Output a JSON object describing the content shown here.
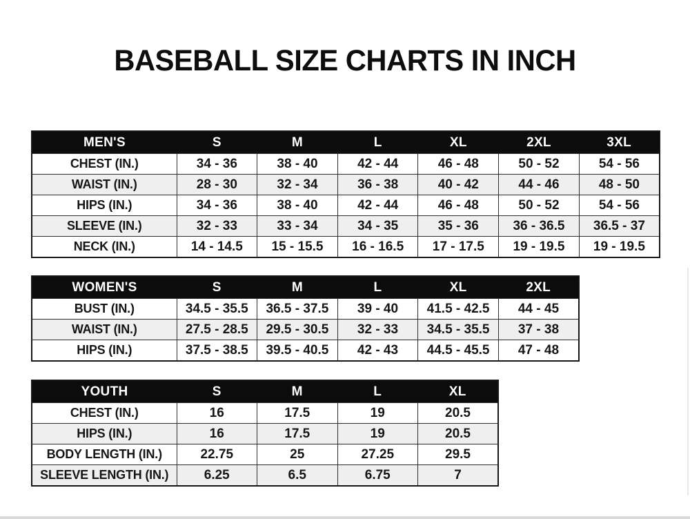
{
  "title": "BASEBALL SIZE CHARTS IN INCH",
  "colors": {
    "header_bg": "#0c0c0c",
    "header_text": "#ffffff",
    "row_alt_bg": "#efefef",
    "border": "#2d2d2d",
    "text": "#151515"
  },
  "tables": [
    {
      "id": "mens",
      "header": [
        "MEN'S",
        "S",
        "M",
        "L",
        "XL",
        "2XL",
        "3XL"
      ],
      "rows": [
        [
          "CHEST (IN.)",
          "34 - 36",
          "38 - 40",
          "42 - 44",
          "46 - 48",
          "50 - 52",
          "54 - 56"
        ],
        [
          "WAIST (IN.)",
          "28 - 30",
          "32 - 34",
          "36 - 38",
          "40 - 42",
          "44 - 46",
          "48 - 50"
        ],
        [
          "HIPS (IN.)",
          "34 - 36",
          "38 - 40",
          "42 - 44",
          "46 - 48",
          "50 - 52",
          "54 - 56"
        ],
        [
          "SLEEVE (IN.)",
          "32 - 33",
          "33 - 34",
          "34 - 35",
          "35 - 36",
          "36 - 36.5",
          "36.5 - 37"
        ],
        [
          "NECK (IN.)",
          "14 - 14.5",
          "15 - 15.5",
          "16 - 16.5",
          "17 - 17.5",
          "19 - 19.5",
          "19 - 19.5"
        ]
      ]
    },
    {
      "id": "womens",
      "header": [
        "WOMEN'S",
        "S",
        "M",
        "L",
        "XL",
        "2XL"
      ],
      "rows": [
        [
          "BUST (IN.)",
          "34.5 - 35.5",
          "36.5 - 37.5",
          "39 - 40",
          "41.5 - 42.5",
          "44 - 45"
        ],
        [
          "WAIST (IN.)",
          "27.5 - 28.5",
          "29.5 - 30.5",
          "32 - 33",
          "34.5 - 35.5",
          "37 - 38"
        ],
        [
          "HIPS (IN.)",
          "37.5 - 38.5",
          "39.5 - 40.5",
          "42 - 43",
          "44.5 - 45.5",
          "47 - 48"
        ]
      ]
    },
    {
      "id": "youth",
      "header": [
        "YOUTH",
        "S",
        "M",
        "L",
        "XL"
      ],
      "rows": [
        [
          "CHEST (IN.)",
          "16",
          "17.5",
          "19",
          "20.5"
        ],
        [
          "HIPS (IN.)",
          "16",
          "17.5",
          "19",
          "20.5"
        ],
        [
          "BODY LENGTH (IN.)",
          "22.75",
          "25",
          "27.25",
          "29.5"
        ],
        [
          "SLEEVE LENGTH (IN.)",
          "6.25",
          "6.5",
          "6.75",
          "7"
        ]
      ]
    }
  ]
}
